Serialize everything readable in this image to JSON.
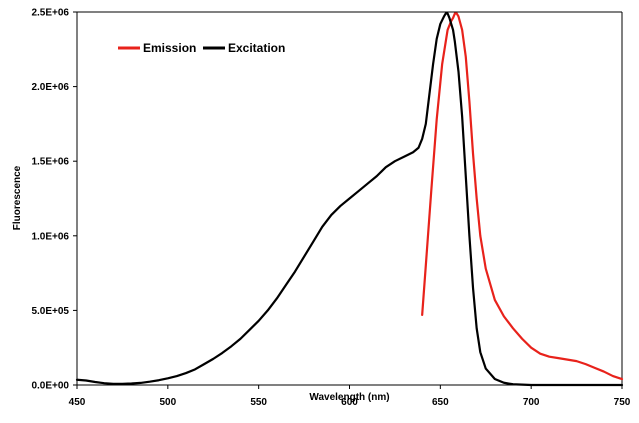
{
  "chart_data": {
    "type": "line",
    "title": "",
    "xlabel": "Wavelength (nm)",
    "ylabel": "Fluorescence",
    "xlim": [
      450,
      750
    ],
    "ylim": [
      0,
      2500000
    ],
    "x_ticks": [
      450,
      500,
      550,
      600,
      650,
      700,
      750
    ],
    "x_tick_labels": [
      "450",
      "500",
      "550",
      "600",
      "650",
      "700",
      "750"
    ],
    "y_ticks": [
      0,
      500000,
      1000000,
      1500000,
      2000000,
      2500000
    ],
    "y_tick_labels": [
      "0.0E+00",
      "5.0E+05",
      "1.0E+06",
      "1.5E+06",
      "2.0E+06",
      "2.5E+06"
    ],
    "grid": false,
    "legend_position": "top-left",
    "series": [
      {
        "name": "Emission",
        "color": "#e8221b",
        "points": [
          [
            640,
            470000
          ],
          [
            642,
            800000
          ],
          [
            645,
            1300000
          ],
          [
            648,
            1780000
          ],
          [
            651,
            2150000
          ],
          [
            654,
            2380000
          ],
          [
            656,
            2440000
          ],
          [
            657,
            2460000
          ],
          [
            658,
            2490000
          ],
          [
            659,
            2490000
          ],
          [
            660,
            2470000
          ],
          [
            662,
            2380000
          ],
          [
            664,
            2200000
          ],
          [
            666,
            1900000
          ],
          [
            668,
            1550000
          ],
          [
            670,
            1250000
          ],
          [
            672,
            1000000
          ],
          [
            675,
            780000
          ],
          [
            680,
            570000
          ],
          [
            685,
            460000
          ],
          [
            690,
            380000
          ],
          [
            695,
            310000
          ],
          [
            700,
            250000
          ],
          [
            705,
            210000
          ],
          [
            710,
            190000
          ],
          [
            715,
            180000
          ],
          [
            720,
            170000
          ],
          [
            725,
            160000
          ],
          [
            730,
            140000
          ],
          [
            735,
            115000
          ],
          [
            740,
            90000
          ],
          [
            745,
            60000
          ],
          [
            750,
            40000
          ]
        ]
      },
      {
        "name": "Excitation",
        "color": "#000000",
        "points": [
          [
            450,
            35000
          ],
          [
            455,
            30000
          ],
          [
            460,
            20000
          ],
          [
            465,
            12000
          ],
          [
            470,
            8000
          ],
          [
            475,
            8000
          ],
          [
            480,
            10000
          ],
          [
            485,
            14000
          ],
          [
            490,
            22000
          ],
          [
            495,
            32000
          ],
          [
            500,
            45000
          ],
          [
            505,
            60000
          ],
          [
            510,
            80000
          ],
          [
            515,
            105000
          ],
          [
            520,
            140000
          ],
          [
            525,
            175000
          ],
          [
            530,
            215000
          ],
          [
            535,
            260000
          ],
          [
            540,
            310000
          ],
          [
            545,
            370000
          ],
          [
            550,
            430000
          ],
          [
            555,
            500000
          ],
          [
            560,
            580000
          ],
          [
            565,
            670000
          ],
          [
            570,
            760000
          ],
          [
            575,
            860000
          ],
          [
            580,
            960000
          ],
          [
            585,
            1060000
          ],
          [
            590,
            1140000
          ],
          [
            595,
            1200000
          ],
          [
            600,
            1250000
          ],
          [
            605,
            1300000
          ],
          [
            610,
            1350000
          ],
          [
            615,
            1400000
          ],
          [
            620,
            1460000
          ],
          [
            625,
            1500000
          ],
          [
            630,
            1530000
          ],
          [
            635,
            1560000
          ],
          [
            638,
            1590000
          ],
          [
            640,
            1650000
          ],
          [
            642,
            1750000
          ],
          [
            644,
            1950000
          ],
          [
            646,
            2150000
          ],
          [
            648,
            2320000
          ],
          [
            650,
            2420000
          ],
          [
            652,
            2470000
          ],
          [
            653,
            2490000
          ],
          [
            654,
            2490000
          ],
          [
            655,
            2460000
          ],
          [
            656,
            2420000
          ],
          [
            657,
            2380000
          ],
          [
            658,
            2300000
          ],
          [
            660,
            2100000
          ],
          [
            662,
            1800000
          ],
          [
            664,
            1400000
          ],
          [
            666,
            1000000
          ],
          [
            668,
            650000
          ],
          [
            670,
            380000
          ],
          [
            672,
            220000
          ],
          [
            675,
            110000
          ],
          [
            680,
            40000
          ],
          [
            685,
            15000
          ],
          [
            690,
            5000
          ],
          [
            700,
            0
          ],
          [
            710,
            0
          ],
          [
            750,
            0
          ]
        ]
      }
    ]
  }
}
